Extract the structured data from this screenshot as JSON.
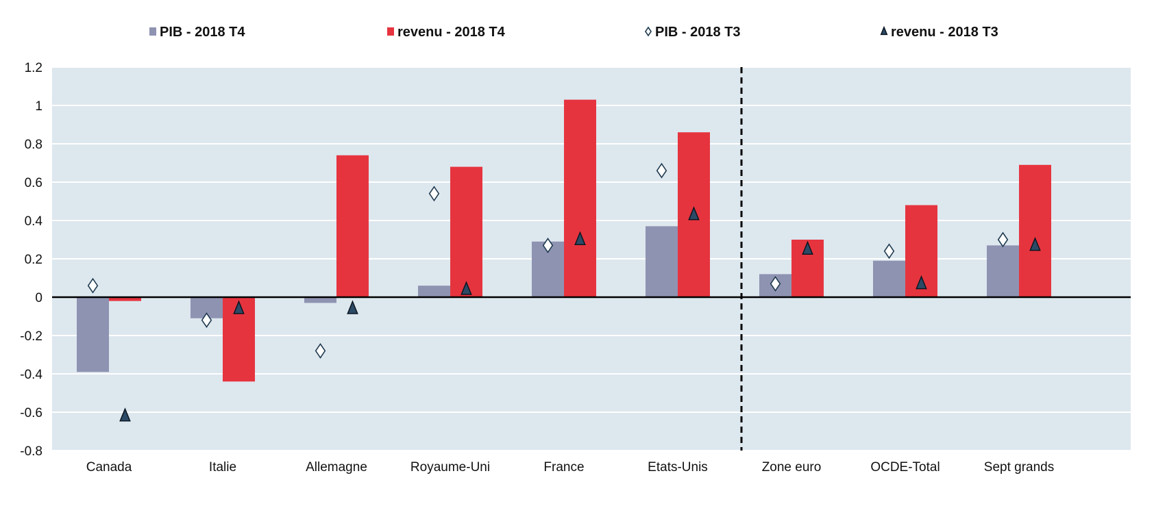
{
  "chart_data": {
    "type": "bar",
    "categories": [
      "Canada",
      "Italie",
      "Allemagne",
      "Royaume-Uni",
      "France",
      "Etats-Unis",
      "Zone euro",
      "OCDE-Total",
      "Sept grands"
    ],
    "series": [
      {
        "name": "PIB - 2018 T4",
        "kind": "bar",
        "values": [
          -0.39,
          -0.11,
          -0.03,
          0.06,
          0.29,
          0.37,
          0.12,
          0.19,
          0.27
        ]
      },
      {
        "name": "revenu - 2018 T4",
        "kind": "bar",
        "values": [
          -0.02,
          -0.44,
          0.74,
          0.68,
          1.03,
          0.86,
          0.3,
          0.48,
          0.69
        ]
      },
      {
        "name": "PIB - 2018 T3",
        "kind": "marker",
        "marker": "diamond",
        "values": [
          0.06,
          -0.12,
          -0.28,
          0.54,
          0.27,
          0.66,
          0.07,
          0.24,
          0.3
        ]
      },
      {
        "name": "revenu - 2018 T3",
        "kind": "marker",
        "marker": "triangle",
        "values": [
          -0.62,
          -0.06,
          -0.06,
          0.04,
          0.3,
          0.43,
          0.25,
          0.07,
          0.27
        ]
      }
    ],
    "y_ticks": [
      "1.2",
      "1",
      "0.8",
      "0.6",
      "0.4",
      "0.2",
      "0",
      "-0.2",
      "-0.4",
      "-0.6",
      "-0.8"
    ],
    "y_tick_values": [
      1.2,
      1.0,
      0.8,
      0.6,
      0.4,
      0.2,
      0.0,
      -0.2,
      -0.4,
      -0.6,
      -0.8
    ],
    "ylim": [
      -0.8,
      1.2
    ],
    "grid": true,
    "legend_position": "top",
    "separator_after_category": "Etats-Unis",
    "colors": {
      "plot_background": "#dde7ee",
      "gridline": "#ffffff",
      "pib_t4": "#8f93b2",
      "revenu_t4": "#e6343f",
      "diamond_fill": "#ffffff",
      "diamond_stroke": "#1f3a4f",
      "triangle_fill": "#2c4a66",
      "triangle_stroke": "#0b1620",
      "zero_line": "#000000",
      "separator": "#000000"
    }
  }
}
